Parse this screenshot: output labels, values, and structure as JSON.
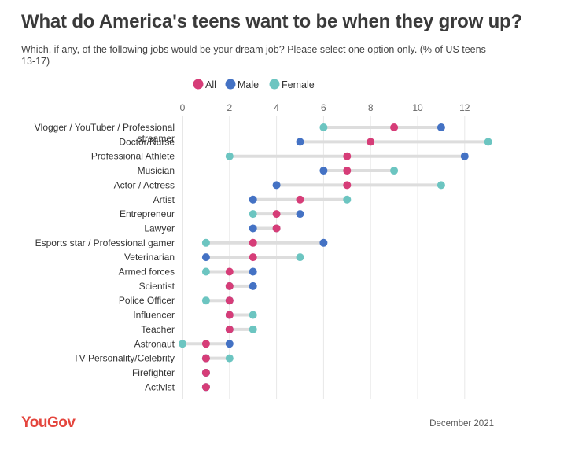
{
  "header": {
    "title": "What do America's teens want to be when they grow up?",
    "subtitle": "Which, if any, of the following jobs would be your dream job? Please select one option only. (% of US teens 13-17)"
  },
  "footer": {
    "brand": "YouGov",
    "date": "December 2021"
  },
  "colors": {
    "All": "#d63d78",
    "Male": "#4472c4",
    "Female": "#6cc5c1",
    "connector": "#dddddd",
    "grid": "#e8e8e8"
  },
  "chart_data": {
    "type": "dot-plot",
    "title": "What do America's teens want to be when they grow up?",
    "xlim": [
      0,
      13
    ],
    "xticks": [
      0,
      2,
      4,
      6,
      8,
      10,
      12
    ],
    "grid": true,
    "legend_placement": "top-center",
    "legend": [
      "All",
      "Male",
      "Female"
    ],
    "categories": [
      [
        "Vlogger / YouTuber / Professional",
        "streamer"
      ],
      [
        "Doctor/Nurse"
      ],
      [
        "Professional Athlete"
      ],
      [
        "Musician"
      ],
      [
        "Actor / Actress"
      ],
      [
        "Artist"
      ],
      [
        "Entrepreneur"
      ],
      [
        "Lawyer"
      ],
      [
        "Esports star / Professional gamer"
      ],
      [
        "Veterinarian"
      ],
      [
        "Armed forces"
      ],
      [
        "Scientist"
      ],
      [
        "Police Officer"
      ],
      [
        "Influencer"
      ],
      [
        "Teacher"
      ],
      [
        "Astronaut"
      ],
      [
        "TV Personality/Celebrity"
      ],
      [
        "Firefighter"
      ],
      [
        "Activist"
      ]
    ],
    "series": [
      {
        "name": "All",
        "values": [
          9,
          8,
          7,
          7,
          7,
          5,
          4,
          4,
          3,
          3,
          2,
          2,
          2,
          2,
          2,
          1,
          1,
          1,
          1
        ]
      },
      {
        "name": "Male",
        "values": [
          11,
          5,
          12,
          6,
          4,
          3,
          5,
          3,
          6,
          1,
          3,
          3,
          2,
          2,
          2,
          2,
          1,
          1,
          1
        ]
      },
      {
        "name": "Female",
        "values": [
          6,
          13,
          2,
          9,
          11,
          7,
          3,
          4,
          1,
          5,
          1,
          2,
          1,
          3,
          3,
          0,
          2,
          1,
          1
        ]
      }
    ]
  }
}
